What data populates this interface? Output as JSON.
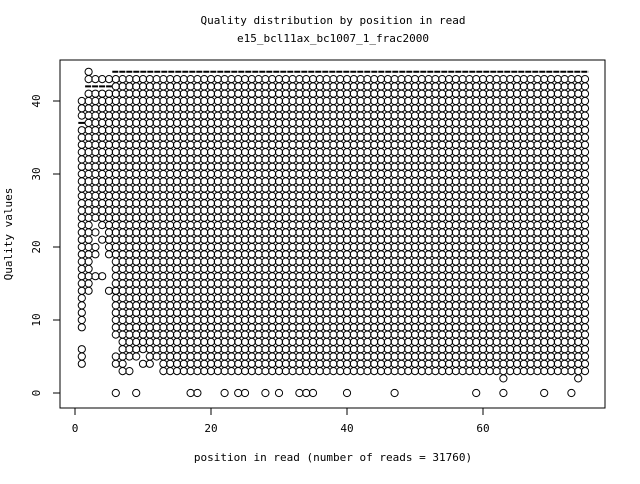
{
  "chart_data": {
    "type": "scatter",
    "title": "Quality distribution by position in read",
    "subtitle": "e15_bcl11ax_bc1007_1_frac2000",
    "xlabel": "position in read (number of reads = 31760)",
    "ylabel": "Quality values",
    "xlim": [
      0,
      76
    ],
    "ylim": [
      0,
      44
    ],
    "xticks": [
      0,
      20,
      40,
      60
    ],
    "yticks": [
      0,
      10,
      20,
      30,
      40
    ],
    "grid": false,
    "legend": "none",
    "marker": "open-circle",
    "color": "#000000",
    "columns": [
      {
        "x": 1,
        "ranges": [
          [
            9,
            36
          ],
          [
            38,
            40
          ]
        ],
        "points": [
          4,
          5,
          6
        ]
      },
      {
        "x": 2,
        "ranges": [
          [
            14,
            41
          ],
          [
            43,
            43
          ]
        ],
        "points": [
          44
        ]
      },
      {
        "x": 3,
        "ranges": [
          [
            24,
            41
          ],
          [
            43,
            43
          ]
        ],
        "points": [
          16,
          19,
          20,
          22
        ]
      },
      {
        "x": 4,
        "ranges": [
          [
            25,
            41
          ],
          [
            43,
            43
          ]
        ],
        "points": [
          16,
          21,
          23,
          24
        ]
      },
      {
        "x": 5,
        "ranges": [
          [
            19,
            41
          ],
          [
            43,
            43
          ]
        ],
        "points": [
          14
        ]
      },
      {
        "x": 6,
        "ranges": [
          [
            8,
            43
          ]
        ],
        "points": [
          0,
          4,
          5,
          14
        ]
      },
      {
        "x": 7,
        "ranges": [
          [
            3,
            43
          ]
        ],
        "points": []
      },
      {
        "x": 8,
        "ranges": [
          [
            5,
            43
          ]
        ],
        "points": [
          3
        ]
      },
      {
        "x": 9,
        "ranges": [
          [
            5,
            43
          ]
        ],
        "points": [
          0
        ]
      },
      {
        "x": 10,
        "ranges": [
          [
            6,
            43
          ]
        ],
        "points": [
          4
        ]
      },
      {
        "x": 11,
        "ranges": [
          [
            4,
            43
          ]
        ],
        "points": []
      },
      {
        "x": 12,
        "ranges": [
          [
            5,
            43
          ]
        ],
        "points": []
      },
      {
        "x": 13,
        "ranges": [
          [
            3,
            43
          ]
        ],
        "points": []
      },
      {
        "x": 14,
        "ranges": [
          [
            3,
            43
          ]
        ],
        "points": []
      },
      {
        "x": 15,
        "ranges": [
          [
            3,
            43
          ]
        ],
        "points": []
      },
      {
        "x": 16,
        "ranges": [
          [
            3,
            43
          ]
        ],
        "points": []
      },
      {
        "x": 17,
        "ranges": [
          [
            3,
            43
          ]
        ],
        "points": [
          0
        ]
      },
      {
        "x": 18,
        "ranges": [
          [
            3,
            43
          ]
        ],
        "points": [
          0
        ]
      },
      {
        "x": 19,
        "ranges": [
          [
            3,
            43
          ]
        ],
        "points": []
      },
      {
        "x": 20,
        "ranges": [
          [
            3,
            43
          ]
        ],
        "points": []
      },
      {
        "x": 21,
        "ranges": [
          [
            3,
            43
          ]
        ],
        "points": []
      },
      {
        "x": 22,
        "ranges": [
          [
            3,
            43
          ]
        ],
        "points": [
          0
        ]
      },
      {
        "x": 23,
        "ranges": [
          [
            3,
            43
          ]
        ],
        "points": []
      },
      {
        "x": 24,
        "ranges": [
          [
            3,
            43
          ]
        ],
        "points": [
          0
        ]
      },
      {
        "x": 25,
        "ranges": [
          [
            3,
            43
          ]
        ],
        "points": [
          0
        ]
      },
      {
        "x": 26,
        "ranges": [
          [
            3,
            43
          ]
        ],
        "points": []
      },
      {
        "x": 27,
        "ranges": [
          [
            3,
            43
          ]
        ],
        "points": []
      },
      {
        "x": 28,
        "ranges": [
          [
            3,
            43
          ]
        ],
        "points": [
          0
        ]
      },
      {
        "x": 29,
        "ranges": [
          [
            3,
            43
          ]
        ],
        "points": []
      },
      {
        "x": 30,
        "ranges": [
          [
            3,
            43
          ]
        ],
        "points": [
          0
        ]
      },
      {
        "x": 31,
        "ranges": [
          [
            3,
            43
          ]
        ],
        "points": []
      },
      {
        "x": 32,
        "ranges": [
          [
            3,
            43
          ]
        ],
        "points": []
      },
      {
        "x": 33,
        "ranges": [
          [
            3,
            43
          ]
        ],
        "points": [
          0
        ]
      },
      {
        "x": 34,
        "ranges": [
          [
            3,
            43
          ]
        ],
        "points": [
          0
        ]
      },
      {
        "x": 35,
        "ranges": [
          [
            3,
            43
          ]
        ],
        "points": [
          0
        ]
      },
      {
        "x": 36,
        "ranges": [
          [
            3,
            43
          ]
        ],
        "points": []
      },
      {
        "x": 37,
        "ranges": [
          [
            3,
            43
          ]
        ],
        "points": []
      },
      {
        "x": 38,
        "ranges": [
          [
            3,
            43
          ]
        ],
        "points": []
      },
      {
        "x": 39,
        "ranges": [
          [
            3,
            43
          ]
        ],
        "points": []
      },
      {
        "x": 40,
        "ranges": [
          [
            3,
            43
          ]
        ],
        "points": [
          0
        ]
      },
      {
        "x": 41,
        "ranges": [
          [
            3,
            43
          ]
        ],
        "points": []
      },
      {
        "x": 42,
        "ranges": [
          [
            3,
            43
          ]
        ],
        "points": []
      },
      {
        "x": 43,
        "ranges": [
          [
            3,
            43
          ]
        ],
        "points": []
      },
      {
        "x": 44,
        "ranges": [
          [
            3,
            43
          ]
        ],
        "points": []
      },
      {
        "x": 45,
        "ranges": [
          [
            3,
            43
          ]
        ],
        "points": []
      },
      {
        "x": 46,
        "ranges": [
          [
            3,
            43
          ]
        ],
        "points": []
      },
      {
        "x": 47,
        "ranges": [
          [
            3,
            43
          ]
        ],
        "points": [
          0
        ]
      },
      {
        "x": 48,
        "ranges": [
          [
            3,
            43
          ]
        ],
        "points": []
      },
      {
        "x": 49,
        "ranges": [
          [
            3,
            43
          ]
        ],
        "points": []
      },
      {
        "x": 50,
        "ranges": [
          [
            3,
            43
          ]
        ],
        "points": []
      },
      {
        "x": 51,
        "ranges": [
          [
            3,
            43
          ]
        ],
        "points": []
      },
      {
        "x": 52,
        "ranges": [
          [
            3,
            43
          ]
        ],
        "points": []
      },
      {
        "x": 53,
        "ranges": [
          [
            3,
            43
          ]
        ],
        "points": []
      },
      {
        "x": 54,
        "ranges": [
          [
            3,
            43
          ]
        ],
        "points": []
      },
      {
        "x": 55,
        "ranges": [
          [
            3,
            43
          ]
        ],
        "points": []
      },
      {
        "x": 56,
        "ranges": [
          [
            3,
            43
          ]
        ],
        "points": []
      },
      {
        "x": 57,
        "ranges": [
          [
            3,
            43
          ]
        ],
        "points": []
      },
      {
        "x": 58,
        "ranges": [
          [
            3,
            43
          ]
        ],
        "points": []
      },
      {
        "x": 59,
        "ranges": [
          [
            3,
            43
          ]
        ],
        "points": [
          0
        ]
      },
      {
        "x": 60,
        "ranges": [
          [
            3,
            43
          ]
        ],
        "points": []
      },
      {
        "x": 61,
        "ranges": [
          [
            3,
            43
          ]
        ],
        "points": []
      },
      {
        "x": 62,
        "ranges": [
          [
            3,
            43
          ]
        ],
        "points": []
      },
      {
        "x": 63,
        "ranges": [
          [
            3,
            43
          ]
        ],
        "points": [
          0,
          2
        ]
      },
      {
        "x": 64,
        "ranges": [
          [
            3,
            43
          ]
        ],
        "points": []
      },
      {
        "x": 65,
        "ranges": [
          [
            3,
            43
          ]
        ],
        "points": []
      },
      {
        "x": 66,
        "ranges": [
          [
            3,
            43
          ]
        ],
        "points": []
      },
      {
        "x": 67,
        "ranges": [
          [
            3,
            43
          ]
        ],
        "points": []
      },
      {
        "x": 68,
        "ranges": [
          [
            3,
            43
          ]
        ],
        "points": []
      },
      {
        "x": 69,
        "ranges": [
          [
            3,
            43
          ]
        ],
        "points": [
          0
        ]
      },
      {
        "x": 70,
        "ranges": [
          [
            3,
            43
          ]
        ],
        "points": []
      },
      {
        "x": 71,
        "ranges": [
          [
            3,
            43
          ]
        ],
        "points": []
      },
      {
        "x": 72,
        "ranges": [
          [
            3,
            43
          ]
        ],
        "points": []
      },
      {
        "x": 73,
        "ranges": [
          [
            3,
            43
          ]
        ],
        "points": [
          0
        ]
      },
      {
        "x": 74,
        "ranges": [
          [
            3,
            43
          ]
        ],
        "points": [
          2
        ]
      },
      {
        "x": 75,
        "ranges": [
          [
            3,
            43
          ]
        ],
        "points": []
      }
    ],
    "segments": [
      {
        "x_from": 6,
        "x_to": 75,
        "y": 44
      },
      {
        "x_from": 2,
        "x_to": 5,
        "y": 42
      },
      {
        "x_from": 1,
        "x_to": 1,
        "y": 37
      }
    ]
  }
}
